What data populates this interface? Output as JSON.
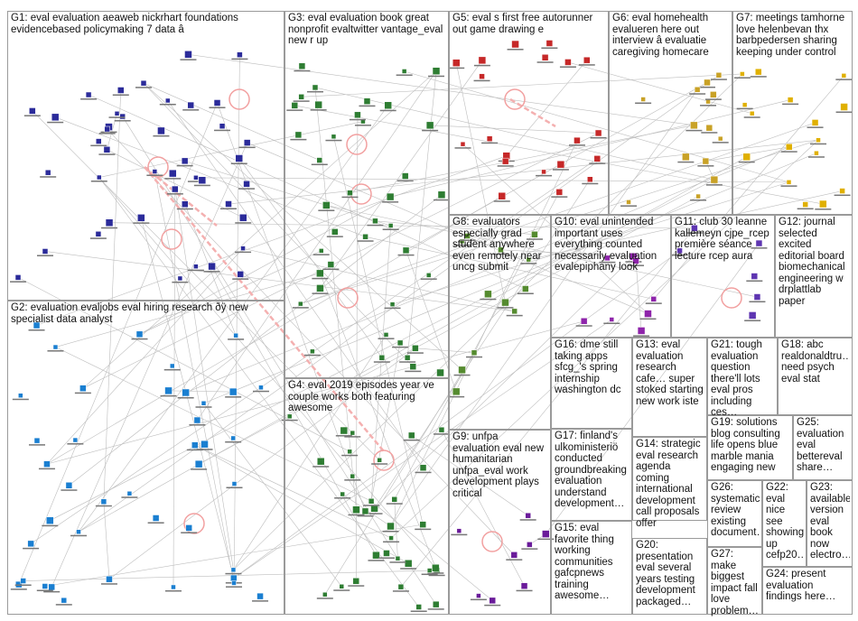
{
  "groups": [
    {
      "id": "G1",
      "label": "G1: eval evaluation aeaweb nickrhart foundations evidencebased policymaking 7 data â"
    },
    {
      "id": "G2",
      "label": "G2: evaluation evaljobs eval hiring research ðÿ new specialist data analyst"
    },
    {
      "id": "G3",
      "label": "G3: eval evaluation book great nonprofit evaltwitter vantage_eval new r up"
    },
    {
      "id": "G4",
      "label": "G4: eval 2019 episodes year ve couple works both featuring awesome"
    },
    {
      "id": "G5",
      "label": "G5: eval s first free autorunner out game drawing e"
    },
    {
      "id": "G6",
      "label": "G6: eval homehealth evalueren here out interview â evaluatie caregiving homecare"
    },
    {
      "id": "G7",
      "label": "G7: meetings tamhorne love helenbevan thx barbpedersen sharing keeping under control"
    },
    {
      "id": "G8",
      "label": "G8: evaluators especially grad student anywhere even remotely near uncg submit"
    },
    {
      "id": "G9",
      "label": "G9: unfpa evaluation eval new humanitarian unfpa_eval work development plays critical"
    },
    {
      "id": "G10",
      "label": "G10: eval unintended important uses everything counted necessarily evaluation evalepiphany look"
    },
    {
      "id": "G11",
      "label": "G11: club 30 leanne kallemeyn cjpe_rcep première séance lecture rcep aura"
    },
    {
      "id": "G12",
      "label": "G12: journal selected excited editorial board biomechanical engineering w drplattlab paper"
    },
    {
      "id": "G13",
      "label": "G13: eval evaluation research cafe… super stoked starting new work iste"
    },
    {
      "id": "G14",
      "label": "G14: strategic eval research agenda coming international development call proposals offer"
    },
    {
      "id": "G15",
      "label": "G15: eval favorite thing working communities gafcpnews training awesome…"
    },
    {
      "id": "G16",
      "label": "G16: dme still taking apps sfcg_'s spring internship washington dc"
    },
    {
      "id": "G17",
      "label": "G17: finland's ulkoministeriö conducted groundbreaking evaluation understand development…"
    },
    {
      "id": "G18",
      "label": "G18: abc realdonaldtru… need psych eval stat"
    },
    {
      "id": "G19",
      "label": "G19: solutions blog consulting life opens blue marble mania engaging new"
    },
    {
      "id": "G20",
      "label": "G20: presentation eval several years testing development packaged…"
    },
    {
      "id": "G21",
      "label": "G21: tough evaluation question there'll lots eval pros including ces…"
    },
    {
      "id": "G22",
      "label": "G22: eval nice see showing up cefp20…"
    },
    {
      "id": "G23",
      "label": "G23: available version eval book now electro…"
    },
    {
      "id": "G24",
      "label": "G24: present evaluation findings here…"
    },
    {
      "id": "G25",
      "label": "G25: evaluation eval bettereval share…"
    },
    {
      "id": "G26",
      "label": "G26: systematic review existing document…"
    },
    {
      "id": "G27",
      "label": "G27: make biggest impact fall love problem…"
    }
  ],
  "colors": {
    "border": "#9a9a9a",
    "edge": "#bdbdbd",
    "self_loop": "#f2a0a0",
    "highlight_edge": "#f4b0b0"
  }
}
